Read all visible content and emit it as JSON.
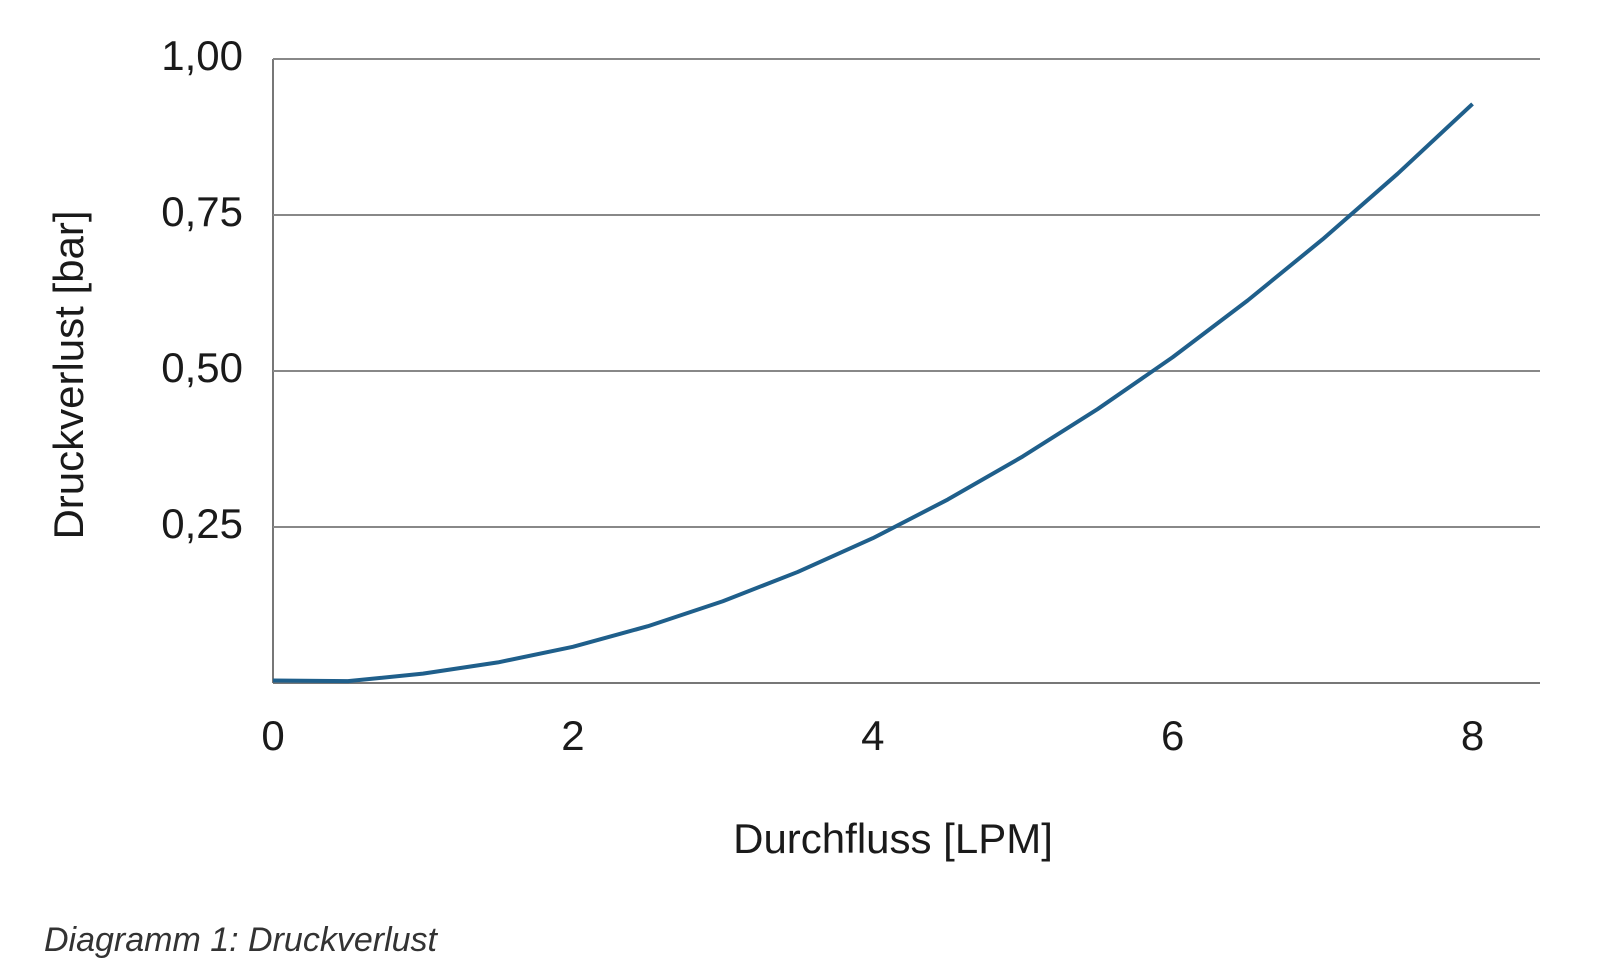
{
  "chart_data": {
    "type": "line",
    "xlabel": "Durchfluss [LPM]",
    "ylabel": "Druckverlust [bar]",
    "caption": "Diagramm 1: Druckverlust",
    "x": [
      0,
      0.5,
      1,
      1.5,
      2,
      2.5,
      3,
      3.5,
      4,
      4.5,
      5,
      5.5,
      6,
      6.5,
      7,
      7.5,
      8
    ],
    "series": [
      {
        "color": "#1f5f8b",
        "values": [
          0.004,
          0.003,
          0.015,
          0.033,
          0.058,
          0.091,
          0.131,
          0.178,
          0.232,
          0.294,
          0.363,
          0.439,
          0.522,
          0.613,
          0.711,
          0.816,
          0.928
        ]
      }
    ],
    "xlim": [
      0,
      8.45
    ],
    "xticks": [
      0,
      2,
      4,
      6,
      8
    ],
    "ylim": [
      0,
      1
    ],
    "yticks": [
      {
        "value": 0.25,
        "label": "0,25"
      },
      {
        "value": 0.5,
        "label": "0,50"
      },
      {
        "value": 0.75,
        "label": "0,75"
      },
      {
        "value": 1,
        "label": "1,00"
      }
    ],
    "grid": true
  }
}
